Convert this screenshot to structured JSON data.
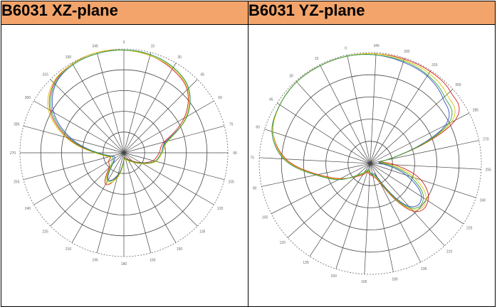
{
  "headers": [
    "B6031 XZ-plane",
    "B6031 YZ-plane"
  ],
  "plots": [
    {
      "name": "xz",
      "angle_labels": [
        "0",
        "15",
        "30",
        "45",
        "60",
        "75",
        "90",
        "105",
        "120",
        "135",
        "150",
        "165",
        "180",
        "195",
        "210",
        "225",
        "240",
        "255",
        "270",
        "285",
        "300",
        "315",
        "330",
        "345"
      ],
      "traces": [
        {
          "color": "#3a4fc0",
          "r": [
            0.99,
            0.98,
            0.95,
            0.88,
            0.7,
            0.42,
            0.36,
            0.31,
            0.2,
            0.12,
            0.08,
            0.06,
            0.07,
            0.22,
            0.3,
            0.15,
            0.1,
            0.12,
            0.25,
            0.52,
            0.78,
            0.93,
            0.98,
            0.99
          ]
        },
        {
          "color": "#d02020",
          "r": [
            0.99,
            0.97,
            0.93,
            0.86,
            0.67,
            0.4,
            0.34,
            0.29,
            0.19,
            0.11,
            0.07,
            0.06,
            0.06,
            0.24,
            0.35,
            0.2,
            0.17,
            0.14,
            0.27,
            0.56,
            0.82,
            0.95,
            0.99,
            1.0
          ]
        },
        {
          "color": "#d8c600",
          "r": [
            0.99,
            0.97,
            0.94,
            0.87,
            0.69,
            0.44,
            0.37,
            0.32,
            0.21,
            0.13,
            0.09,
            0.07,
            0.08,
            0.25,
            0.33,
            0.18,
            0.14,
            0.15,
            0.28,
            0.58,
            0.84,
            0.96,
            0.99,
            1.0
          ]
        },
        {
          "color": "#30a040",
          "r": [
            0.99,
            0.98,
            0.95,
            0.88,
            0.7,
            0.43,
            0.36,
            0.31,
            0.2,
            0.12,
            0.08,
            0.06,
            0.07,
            0.23,
            0.31,
            0.16,
            0.12,
            0.13,
            0.26,
            0.54,
            0.8,
            0.94,
            0.98,
            0.99
          ]
        }
      ]
    },
    {
      "name": "yz",
      "angle_labels": [
        "0",
        "345",
        "330",
        "315",
        "300",
        "285",
        "270",
        "255",
        "240",
        "225",
        "210",
        "195",
        "180",
        "165",
        "150",
        "135",
        "120",
        "105",
        "90",
        "75",
        "60",
        "45",
        "30",
        "15"
      ],
      "traces": [
        {
          "color": "#3a4fc0",
          "r": [
            0.99,
            0.98,
            0.96,
            0.94,
            0.88,
            0.76,
            0.14,
            0.12,
            0.34,
            0.55,
            0.52,
            0.14,
            0.1,
            0.08,
            0.06,
            0.1,
            0.16,
            0.32,
            0.5,
            0.78,
            0.93,
            0.97,
            0.99,
            0.99
          ]
        },
        {
          "color": "#d02020",
          "r": [
            0.99,
            0.99,
            0.99,
            0.99,
            0.97,
            0.86,
            0.14,
            0.22,
            0.48,
            0.62,
            0.58,
            0.2,
            0.12,
            0.1,
            0.08,
            0.12,
            0.18,
            0.3,
            0.48,
            0.76,
            0.92,
            0.97,
            0.99,
            0.99
          ]
        },
        {
          "color": "#d8c600",
          "r": [
            0.99,
            0.99,
            0.98,
            0.97,
            0.93,
            0.82,
            0.14,
            0.18,
            0.42,
            0.6,
            0.56,
            0.18,
            0.11,
            0.09,
            0.07,
            0.11,
            0.17,
            0.31,
            0.49,
            0.77,
            0.92,
            0.97,
            0.99,
            0.99
          ]
        },
        {
          "color": "#30a040",
          "r": [
            0.99,
            0.98,
            0.97,
            0.95,
            0.9,
            0.79,
            0.14,
            0.15,
            0.38,
            0.57,
            0.54,
            0.16,
            0.11,
            0.08,
            0.06,
            0.1,
            0.16,
            0.32,
            0.5,
            0.78,
            0.93,
            0.97,
            0.99,
            0.99
          ]
        }
      ]
    }
  ]
}
